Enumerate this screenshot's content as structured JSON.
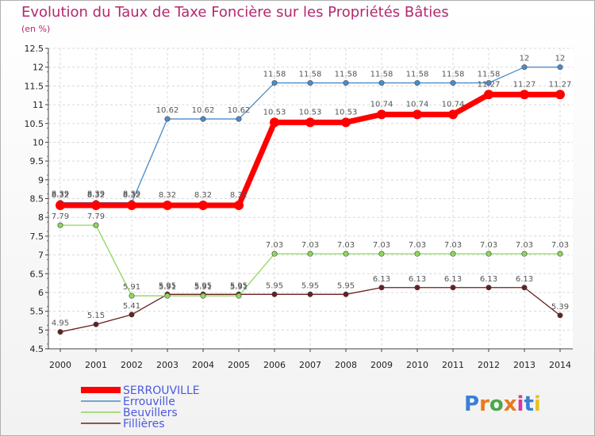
{
  "chart_data": {
    "type": "line",
    "title": "Evolution du Taux de Taxe Foncière sur les Propriétés Bâties",
    "ylabel": "(en %)",
    "xlabel": "",
    "ylim": [
      4.5,
      12.5
    ],
    "yticks": [
      4.5,
      5,
      5.5,
      6,
      6.5,
      7,
      7.5,
      8,
      8.5,
      9,
      9.5,
      10,
      10.5,
      11,
      11.5,
      12,
      12.5
    ],
    "ytick_labels": [
      "4.5",
      "5",
      "5.5",
      "6",
      "6.5",
      "7",
      "7.5",
      "8",
      "8.5",
      "9",
      "9.5",
      "10",
      "10.5",
      "11",
      "11.5",
      "12",
      "12.5"
    ],
    "categories": [
      "2000",
      "2001",
      "2002",
      "2003",
      "2004",
      "2005",
      "2006",
      "2007",
      "2008",
      "2009",
      "2010",
      "2011",
      "2012",
      "2013",
      "2014"
    ],
    "grid": true,
    "legend_position": "bottom-left",
    "series": [
      {
        "name": "SERROUVILLE",
        "color": "#ff0000",
        "values": [
          8.32,
          8.32,
          8.32,
          8.32,
          8.32,
          8.32,
          10.53,
          10.53,
          10.53,
          10.74,
          10.74,
          10.74,
          11.27,
          11.27,
          11.27
        ],
        "labels": [
          "8.32",
          "8.32",
          "8.32",
          "8.32",
          "8.32",
          "8.32",
          "10.53",
          "10.53",
          "10.53",
          "10.74",
          "10.74",
          "10.74",
          "11.27",
          "11.27",
          "11.27"
        ]
      },
      {
        "name": "Errouville",
        "color": "#4a8cc8",
        "values": [
          8.39,
          8.39,
          8.39,
          10.62,
          10.62,
          10.62,
          11.58,
          11.58,
          11.58,
          11.58,
          11.58,
          11.58,
          11.58,
          12,
          12
        ],
        "labels": [
          "8.39",
          "8.39",
          "8.39",
          "10.62",
          "10.62",
          "10.62",
          "11.58",
          "11.58",
          "11.58",
          "11.58",
          "11.58",
          "11.58",
          "11.58",
          "12",
          "12"
        ]
      },
      {
        "name": "Beuvillers",
        "color": "#8ed85a",
        "values": [
          7.79,
          7.79,
          5.91,
          5.91,
          5.91,
          5.91,
          7.03,
          7.03,
          7.03,
          7.03,
          7.03,
          7.03,
          7.03,
          7.03,
          7.03
        ],
        "labels": [
          "7.79",
          "7.79",
          "5.91",
          "5.91",
          "5.91",
          "5.91",
          "7.03",
          "7.03",
          "7.03",
          "7.03",
          "7.03",
          "7.03",
          "7.03",
          "7.03",
          "7.03"
        ]
      },
      {
        "name": "Fillières",
        "color": "#6b1e1e",
        "values": [
          4.95,
          5.15,
          5.41,
          5.95,
          5.95,
          5.95,
          5.95,
          5.95,
          5.95,
          6.13,
          6.13,
          6.13,
          6.13,
          6.13,
          5.39
        ],
        "labels": [
          "4.95",
          "5.15",
          "5.41",
          "5.95",
          "5.95",
          "5.95",
          "5.95",
          "5.95",
          "5.95",
          "6.13",
          "6.13",
          "6.13",
          "6.13",
          "6.13",
          "5.39"
        ]
      }
    ]
  },
  "logo": {
    "text": "Proxiti",
    "colors": [
      "#3a7fd6",
      "#e87a1c",
      "#4aa84a",
      "#e87a1c",
      "#d43a9a",
      "#3a7fd6",
      "#e8c21c"
    ]
  }
}
